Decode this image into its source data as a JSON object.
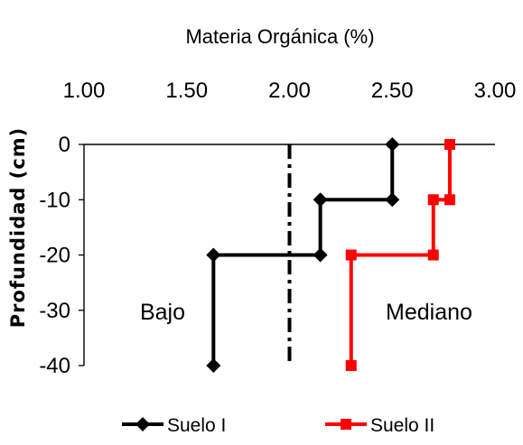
{
  "chart_data": {
    "type": "line",
    "title": "Materia Orgánica (%)",
    "xlabel": "Materia Orgánica (%)",
    "ylabel": "Profundidad  (cm)",
    "x_ticks": [
      "1.00",
      "1.50",
      "2.00",
      "2.50",
      "3.00"
    ],
    "y_ticks": [
      "0",
      "-10",
      "-20",
      "-30",
      "-40"
    ],
    "xlim": [
      1.0,
      3.0
    ],
    "ylim": [
      -40,
      0
    ],
    "x_axis_position": "top",
    "grid": false,
    "legend_position": "bottom",
    "threshold": {
      "x": 2.0,
      "style": "dash-dot",
      "color": "#000000"
    },
    "region_labels": [
      "Bajo",
      "Mediano"
    ],
    "series": [
      {
        "name": "Suelo I",
        "color": "#000000",
        "marker": "diamond",
        "points": [
          [
            2.5,
            0
          ],
          [
            2.5,
            -10
          ],
          [
            2.15,
            -10
          ],
          [
            2.15,
            -20
          ],
          [
            1.63,
            -20
          ],
          [
            1.63,
            -40
          ]
        ]
      },
      {
        "name": "Suelo II",
        "color": "#ff0000",
        "marker": "square",
        "points": [
          [
            2.78,
            0
          ],
          [
            2.78,
            -10
          ],
          [
            2.7,
            -10
          ],
          [
            2.7,
            -20
          ],
          [
            2.3,
            -20
          ],
          [
            2.3,
            -40
          ]
        ]
      }
    ]
  }
}
